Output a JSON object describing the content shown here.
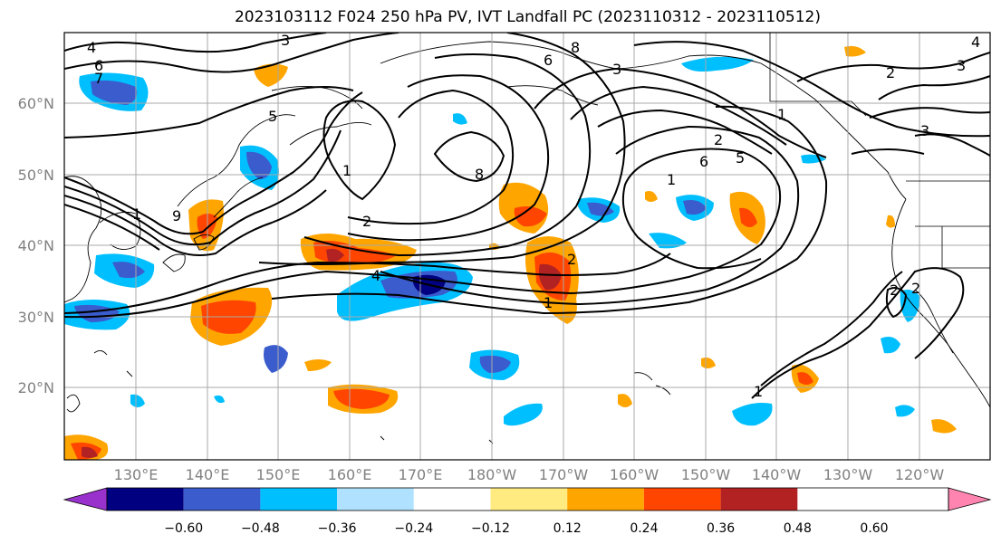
{
  "title": "2023103112 F024 250 hPa PV, IVT Landfall PC (2023110312 - 2023110512)",
  "map": {
    "lat_labels": [
      "60°N",
      "50°N",
      "40°N",
      "30°N",
      "20°N"
    ],
    "lon_labels": [
      "130°E",
      "140°E",
      "150°E",
      "160°E",
      "170°E",
      "180°W",
      "170°W",
      "160°W",
      "150°W",
      "140°W",
      "130°W",
      "120°W"
    ],
    "contour_labels": [
      "4",
      "6",
      "7",
      "3",
      "5",
      "1",
      "9",
      "2",
      "4",
      "8",
      "1",
      "6",
      "3",
      "8",
      "2",
      "6",
      "5",
      "1",
      "2",
      "3",
      "4",
      "2",
      "1",
      "1",
      "2",
      "1",
      "3",
      "2"
    ]
  },
  "colorbar": {
    "tick_labels": [
      "−0.60",
      "−0.48",
      "−0.36",
      "−0.24",
      "−0.12",
      "0.12",
      "0.24",
      "0.36",
      "0.48",
      "0.60"
    ],
    "colors": [
      "#9932cc",
      "#000080",
      "#3a5ccc",
      "#00bfff",
      "#b0e2ff",
      "#ffffff",
      "#ffeb80",
      "#ffa500",
      "#ff4500",
      "#b22222",
      "#ff85b0"
    ]
  },
  "shading_colors": {
    "neg_strong": "#000080",
    "neg_med": "#3a5ccc",
    "neg_weak": "#00bfff",
    "neg_light": "#b0e2ff",
    "pos_light": "#ffeb80",
    "pos_weak": "#ffa500",
    "pos_med": "#ff4500",
    "pos_strong": "#b22222"
  }
}
